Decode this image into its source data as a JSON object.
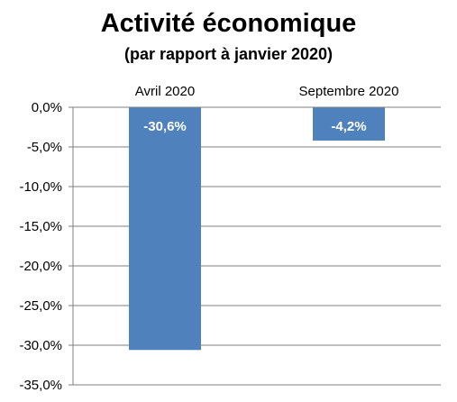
{
  "chart_data": {
    "type": "bar",
    "title": "Activité économique",
    "subtitle": "(par rapport à janvier 2020)",
    "categories": [
      "Avril 2020",
      "Septembre 2020"
    ],
    "values": [
      -30.6,
      -4.2
    ],
    "data_labels": [
      "-30,6%",
      "-4,2%"
    ],
    "ylim": [
      -35,
      0
    ],
    "y_ticks": [
      0,
      -5,
      -10,
      -15,
      -20,
      -25,
      -30,
      -35
    ],
    "y_tick_labels": [
      "0,0%",
      "-5,0%",
      "-10,0%",
      "-15,0%",
      "-20,0%",
      "-25,0%",
      "-30,0%",
      "-35,0%"
    ],
    "xlabel": "",
    "ylabel": "",
    "grid": true,
    "legend": "none",
    "category_axis_position": "top",
    "colors": {
      "bar": "#4f81bd",
      "grid": "#7f7f7f",
      "data_label": "#ffffff",
      "text": "#000000"
    }
  }
}
